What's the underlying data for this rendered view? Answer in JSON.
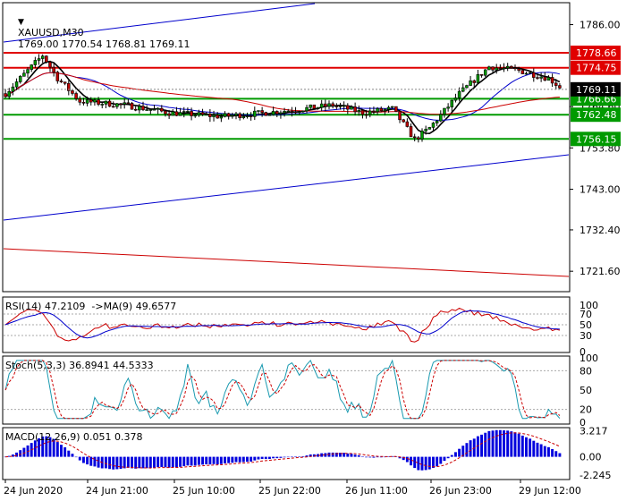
{
  "symbol": "XAUUSD,M30",
  "ohlc": "1769.00 1770.54 1768.81 1769.11",
  "chart_data": [
    {
      "type": "candlestick",
      "title": "XAUUSD,M30",
      "price_axis_ticks": [
        "1786.00",
        "1764.60",
        "1753.80",
        "1743.00",
        "1732.40",
        "1721.60"
      ],
      "ylim": [
        1716.5,
        1791.5
      ],
      "time_labels": [
        "24 Jun 2020",
        "24 Jun 21:00",
        "25 Jun 10:00",
        "25 Jun 22:00",
        "26 Jun 11:00",
        "26 Jun 23:00",
        "29 Jun 12:00"
      ],
      "current_price": "1769.11",
      "levels": [
        {
          "label": "1778.66",
          "value": 1778.66,
          "color": "#e00000",
          "line": "#e00000"
        },
        {
          "label": "1774.75",
          "value": 1774.75,
          "color": "#e00000",
          "line": "#e00000"
        },
        {
          "label": "1766.66",
          "value": 1766.66,
          "color": "#009a00",
          "line": "#009a00"
        },
        {
          "label": "1762.48",
          "value": 1762.48,
          "color": "#009a00",
          "line": "#009a00"
        },
        {
          "label": "1756.15",
          "value": 1756.15,
          "color": "#009a00",
          "line": "#009a00"
        }
      ],
      "colors": {
        "bull": "#009a00",
        "bear": "#c00000",
        "ma_fast": "#000000",
        "ma_mid": "#0000cc",
        "ma_slow": "#cc0000"
      }
    },
    {
      "type": "line",
      "title": "RSI(14) 47.2109  ->MA(9) 49.6577",
      "ticks": [
        "70",
        "50",
        "30",
        "0"
      ],
      "top_tick": "100",
      "ylim": [
        0,
        100
      ],
      "levels": [
        30,
        50,
        70
      ]
    },
    {
      "type": "line",
      "title": "Stoch(5,3,3) 36.8941 44.5333",
      "ticks": [
        "100",
        "80",
        "50",
        "20",
        "0"
      ],
      "ylim": [
        0,
        100
      ],
      "levels": [
        20,
        80
      ]
    },
    {
      "type": "bar",
      "title": "MACD(12,26,9) 0.051 0.378",
      "ticks": [
        "3.217",
        "0.00",
        "-2.245"
      ],
      "ylim": [
        -2.6,
        3.4
      ]
    }
  ]
}
